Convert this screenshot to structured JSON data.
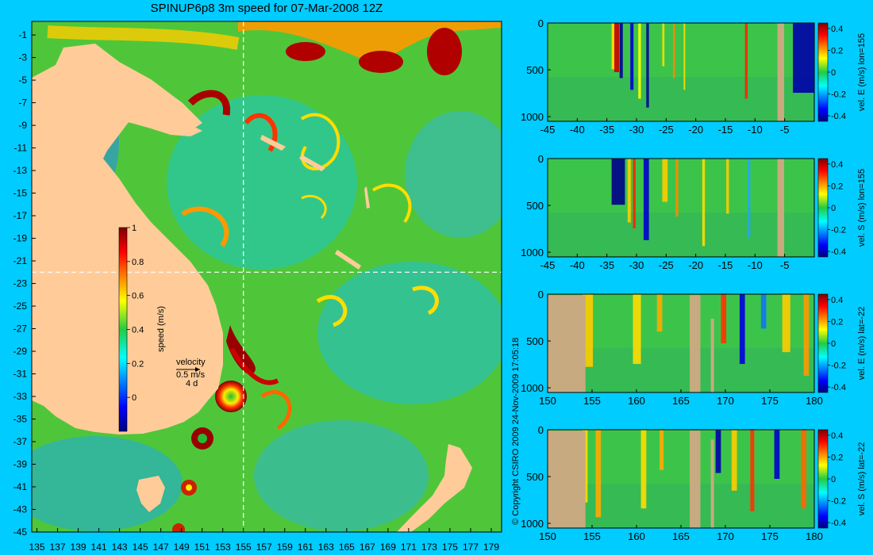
{
  "title": "SPINUP6p8 3m speed for 07-Mar-2008 12Z",
  "copyright": "© Copyright CSIRO 2009   24-Nov-2009 17:05:18",
  "colors": {
    "background": "#00ccff",
    "land": "#ffcc99",
    "section_land": "#c8aa80",
    "guide": "#ffffff"
  },
  "map": {
    "x_ticks": [
      135,
      137,
      139,
      141,
      143,
      145,
      147,
      149,
      151,
      153,
      155,
      157,
      159,
      161,
      163,
      165,
      167,
      169,
      171,
      173,
      175,
      177,
      179
    ],
    "y_ticks": [
      -1,
      -3,
      -5,
      -7,
      -9,
      -11,
      -13,
      -15,
      -17,
      -19,
      -21,
      -23,
      -25,
      -27,
      -29,
      -31,
      -33,
      -35,
      -37,
      -39,
      -41,
      -43,
      -45
    ],
    "lon_range": [
      134.5,
      180
    ],
    "lat_range": [
      -45,
      0.2
    ],
    "guide_lon": 155,
    "guide_lat": -22,
    "colorbar": {
      "label": "speed (m/s)",
      "range": [
        -0.2,
        1
      ],
      "ticks": [
        1,
        0.8,
        0.6,
        0.4,
        0.2,
        0
      ]
    },
    "velocity_key": {
      "title": "velocity",
      "scale": "0.5 m/s",
      "duration": "4 d"
    }
  },
  "sections": [
    {
      "label": "vel. E (m/s) lon=155",
      "x_ticks": [
        -45,
        -40,
        -35,
        -30,
        -25,
        -20,
        -15,
        -10,
        -5
      ],
      "x_range": [
        -45,
        0
      ],
      "y_ticks": [
        0,
        500,
        1000
      ],
      "y_range": [
        0,
        1050
      ],
      "c_ticks": [
        0.4,
        0.2,
        0,
        -0.2,
        -0.4
      ],
      "c_range": [
        -0.45,
        0.45
      ]
    },
    {
      "label": "vel. S (m/s) lon=155",
      "x_ticks": [
        -45,
        -40,
        -35,
        -30,
        -25,
        -20,
        -15,
        -10,
        -5
      ],
      "x_range": [
        -45,
        0
      ],
      "y_ticks": [
        0,
        500,
        1000
      ],
      "y_range": [
        0,
        1050
      ],
      "c_ticks": [
        0.4,
        0.2,
        0,
        -0.2,
        -0.4
      ],
      "c_range": [
        -0.45,
        0.45
      ]
    },
    {
      "label": "vel. E (m/s) lat=-22",
      "x_ticks": [
        150,
        155,
        160,
        165,
        170,
        175,
        180
      ],
      "x_range": [
        150,
        180
      ],
      "y_ticks": [
        0,
        500,
        1000
      ],
      "y_range": [
        0,
        1050
      ],
      "c_ticks": [
        0.4,
        0.2,
        0,
        -0.2,
        -0.4
      ],
      "c_range": [
        -0.45,
        0.45
      ]
    },
    {
      "label": "vel. S (m/s) lat=-22",
      "x_ticks": [
        150,
        155,
        160,
        165,
        170,
        175,
        180
      ],
      "x_range": [
        150,
        180
      ],
      "y_ticks": [
        0,
        500,
        1000
      ],
      "y_range": [
        0,
        1050
      ],
      "c_ticks": [
        0.4,
        0.2,
        0,
        -0.2,
        -0.4
      ],
      "c_range": [
        -0.45,
        0.45
      ]
    }
  ]
}
